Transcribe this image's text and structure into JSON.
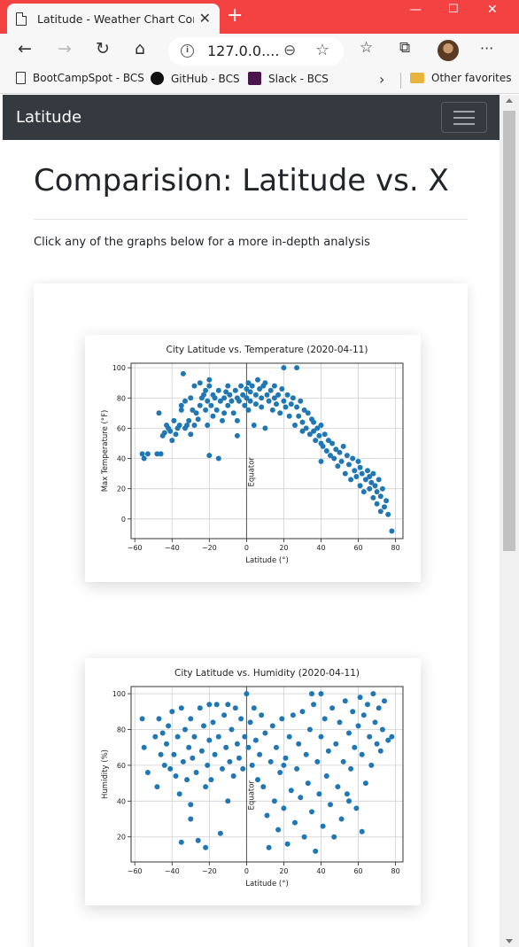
{
  "browser": {
    "tab_title": "Latitude - Weather Chart Compa",
    "address": "127.0.0....",
    "favorites": [
      "BootCampSpot - BCS",
      "GitHub - BCS",
      "Slack - BCS"
    ],
    "other_favorites": "Other favorites"
  },
  "page": {
    "brand": "Latitude",
    "heading": "Comparision: Latitude vs. X",
    "lead": "Click any of the graphs below for a more in-depth analysis"
  },
  "chart_data": [
    {
      "type": "scatter",
      "title": "City Latitude vs. Temperature (2020-04-11)",
      "xlabel": "Latitude (°)",
      "ylabel": "Max Temperature (°F)",
      "annotation": "Equator",
      "xlim": [
        -62,
        84
      ],
      "ylim": [
        -13,
        103
      ],
      "xticks": [
        -60,
        -40,
        -20,
        0,
        20,
        40,
        60,
        80
      ],
      "yticks": [
        0,
        20,
        40,
        60,
        80,
        100
      ],
      "grid": true,
      "color": "#1f77b4",
      "points": [
        [
          -56,
          43
        ],
        [
          -55,
          40
        ],
        [
          -53,
          43
        ],
        [
          -48,
          43
        ],
        [
          -46,
          43
        ],
        [
          -47,
          70
        ],
        [
          -45,
          55
        ],
        [
          -44,
          57
        ],
        [
          -43,
          62
        ],
        [
          -42,
          60
        ],
        [
          -41,
          58
        ],
        [
          -40,
          52
        ],
        [
          -39,
          65
        ],
        [
          -38,
          56
        ],
        [
          -37,
          60
        ],
        [
          -36,
          62
        ],
        [
          -35,
          72
        ],
        [
          -35,
          75
        ],
        [
          -34,
          96
        ],
        [
          -33,
          78
        ],
        [
          -33,
          60
        ],
        [
          -32,
          62
        ],
        [
          -31,
          65
        ],
        [
          -30,
          56
        ],
        [
          -30,
          80
        ],
        [
          -29,
          72
        ],
        [
          -28,
          62
        ],
        [
          -28,
          88
        ],
        [
          -27,
          70
        ],
        [
          -26,
          66
        ],
        [
          -25,
          75
        ],
        [
          -25,
          90
        ],
        [
          -24,
          80
        ],
        [
          -23,
          82
        ],
        [
          -22,
          72
        ],
        [
          -22,
          85
        ],
        [
          -21,
          62
        ],
        [
          -21,
          78
        ],
        [
          -20,
          88
        ],
        [
          -20,
          92
        ],
        [
          -19,
          75
        ],
        [
          -18,
          68
        ],
        [
          -18,
          82
        ],
        [
          -17,
          80
        ],
        [
          -16,
          72
        ],
        [
          -15,
          85
        ],
        [
          -14,
          78
        ],
        [
          -13,
          65
        ],
        [
          -12,
          80
        ],
        [
          -12,
          70
        ],
        [
          -11,
          84
        ],
        [
          -10,
          75
        ],
        [
          -10,
          88
        ],
        [
          -9,
          82
        ],
        [
          -8,
          78
        ],
        [
          -7,
          70
        ],
        [
          -6,
          85
        ],
        [
          -5,
          80
        ],
        [
          -5,
          65
        ],
        [
          -4,
          78
        ],
        [
          -3,
          88
        ],
        [
          -2,
          82
        ],
        [
          -1,
          75
        ],
        [
          0,
          80
        ],
        [
          0,
          86
        ],
        [
          1,
          90
        ],
        [
          1,
          72
        ],
        [
          2,
          78
        ],
        [
          2,
          84
        ],
        [
          3,
          88
        ],
        [
          4,
          62
        ],
        [
          5,
          82
        ],
        [
          5,
          76
        ],
        [
          6,
          92
        ],
        [
          7,
          86
        ],
        [
          8,
          80
        ],
        [
          8,
          74
        ],
        [
          9,
          88
        ],
        [
          10,
          90
        ],
        [
          11,
          82
        ],
        [
          12,
          78
        ],
        [
          13,
          85
        ],
        [
          14,
          72
        ],
        [
          15,
          80
        ],
        [
          15,
          88
        ],
        [
          16,
          76
        ],
        [
          17,
          82
        ],
        [
          18,
          70
        ],
        [
          19,
          86
        ],
        [
          20,
          78
        ],
        [
          20,
          100
        ],
        [
          21,
          74
        ],
        [
          22,
          82
        ],
        [
          23,
          68
        ],
        [
          24,
          76
        ],
        [
          25,
          80
        ],
        [
          26,
          62
        ],
        [
          27,
          74
        ],
        [
          27,
          100
        ],
        [
          28,
          68
        ],
        [
          29,
          78
        ],
        [
          30,
          64
        ],
        [
          31,
          72
        ],
        [
          32,
          60
        ],
        [
          33,
          70
        ],
        [
          34,
          56
        ],
        [
          35,
          66
        ],
        [
          36,
          58
        ],
        [
          36,
          64
        ],
        [
          37,
          52
        ],
        [
          38,
          60
        ],
        [
          39,
          55
        ],
        [
          40,
          50
        ],
        [
          40,
          62
        ],
        [
          41,
          48
        ],
        [
          42,
          56
        ],
        [
          43,
          45
        ],
        [
          44,
          52
        ],
        [
          45,
          42
        ],
        [
          46,
          50
        ],
        [
          47,
          40
        ],
        [
          48,
          46
        ],
        [
          49,
          35
        ],
        [
          50,
          44
        ],
        [
          51,
          38
        ],
        [
          52,
          48
        ],
        [
          53,
          30
        ],
        [
          54,
          42
        ],
        [
          55,
          36
        ],
        [
          56,
          26
        ],
        [
          57,
          40
        ],
        [
          58,
          32
        ],
        [
          59,
          28
        ],
        [
          60,
          38
        ],
        [
          61,
          22
        ],
        [
          61,
          34
        ],
        [
          62,
          30
        ],
        [
          63,
          18
        ],
        [
          64,
          26
        ],
        [
          65,
          32
        ],
        [
          66,
          20
        ],
        [
          66,
          28
        ],
        [
          67,
          24
        ],
        [
          68,
          14
        ],
        [
          68,
          30
        ],
        [
          69,
          22
        ],
        [
          70,
          10
        ],
        [
          70,
          18
        ],
        [
          71,
          26
        ],
        [
          72,
          5
        ],
        [
          72,
          15
        ],
        [
          73,
          20
        ],
        [
          74,
          8
        ],
        [
          75,
          12
        ],
        [
          76,
          3
        ],
        [
          78,
          -8
        ],
        [
          -15,
          40
        ],
        [
          -20,
          42
        ],
        [
          -5,
          55
        ],
        [
          10,
          60
        ],
        [
          30,
          58
        ],
        [
          40,
          38
        ]
      ]
    },
    {
      "type": "scatter",
      "title": "City Latitude vs. Humidity (2020-04-11)",
      "xlabel": "Latitude (°)",
      "ylabel": "Humidity (%)",
      "annotation": "Equator",
      "xlim": [
        -62,
        84
      ],
      "ylim": [
        6,
        104
      ],
      "xticks": [
        -60,
        -40,
        -20,
        0,
        20,
        40,
        60,
        80
      ],
      "yticks": [
        20,
        40,
        60,
        80,
        100
      ],
      "grid": true,
      "color": "#1f77b4",
      "points": [
        [
          -56,
          86
        ],
        [
          -55,
          70
        ],
        [
          -53,
          56
        ],
        [
          -49,
          76
        ],
        [
          -48,
          48
        ],
        [
          -47,
          86
        ],
        [
          -46,
          66
        ],
        [
          -45,
          78
        ],
        [
          -44,
          60
        ],
        [
          -43,
          72
        ],
        [
          -42,
          82
        ],
        [
          -41,
          58
        ],
        [
          -40,
          90
        ],
        [
          -39,
          66
        ],
        [
          -38,
          54
        ],
        [
          -37,
          76
        ],
        [
          -36,
          44
        ],
        [
          -35,
          92
        ],
        [
          -35,
          17
        ],
        [
          -34,
          62
        ],
        [
          -33,
          80
        ],
        [
          -32,
          52
        ],
        [
          -31,
          70
        ],
        [
          -30,
          38
        ],
        [
          -30,
          86
        ],
        [
          -29,
          64
        ],
        [
          -28,
          76
        ],
        [
          -27,
          56
        ],
        [
          -26,
          18
        ],
        [
          -25,
          92
        ],
        [
          -24,
          68
        ],
        [
          -23,
          82
        ],
        [
          -22,
          48
        ],
        [
          -22,
          14
        ],
        [
          -21,
          60
        ],
        [
          -20,
          74
        ],
        [
          -20,
          94
        ],
        [
          -19,
          52
        ],
        [
          -18,
          84
        ],
        [
          -17,
          66
        ],
        [
          -16,
          94
        ],
        [
          -15,
          76
        ],
        [
          -14,
          22
        ],
        [
          -13,
          58
        ],
        [
          -12,
          88
        ],
        [
          -11,
          70
        ],
        [
          -10,
          94
        ],
        [
          -9,
          62
        ],
        [
          -8,
          80
        ],
        [
          -7,
          54
        ],
        [
          -6,
          92
        ],
        [
          -5,
          72
        ],
        [
          -4,
          64
        ],
        [
          -3,
          86
        ],
        [
          -2,
          58
        ],
        [
          -1,
          76
        ],
        [
          0,
          100
        ],
        [
          1,
          70
        ],
        [
          2,
          84
        ],
        [
          3,
          60
        ],
        [
          4,
          92
        ],
        [
          5,
          74
        ],
        [
          6,
          52
        ],
        [
          7,
          66
        ],
        [
          8,
          88
        ],
        [
          9,
          48
        ],
        [
          10,
          78
        ],
        [
          11,
          32
        ],
        [
          12,
          14
        ],
        [
          13,
          62
        ],
        [
          14,
          82
        ],
        [
          15,
          40
        ],
        [
          16,
          70
        ],
        [
          17,
          24
        ],
        [
          18,
          56
        ],
        [
          19,
          86
        ],
        [
          20,
          36
        ],
        [
          21,
          64
        ],
        [
          22,
          16
        ],
        [
          23,
          76
        ],
        [
          24,
          46
        ],
        [
          25,
          88
        ],
        [
          26,
          28
        ],
        [
          27,
          58
        ],
        [
          28,
          72
        ],
        [
          29,
          42
        ],
        [
          30,
          90
        ],
        [
          31,
          20
        ],
        [
          32,
          66
        ],
        [
          33,
          50
        ],
        [
          34,
          80
        ],
        [
          35,
          34
        ],
        [
          36,
          94
        ],
        [
          37,
          12
        ],
        [
          38,
          62
        ],
        [
          39,
          44
        ],
        [
          40,
          76
        ],
        [
          41,
          26
        ],
        [
          42,
          86
        ],
        [
          43,
          54
        ],
        [
          44,
          68
        ],
        [
          45,
          38
        ],
        [
          46,
          92
        ],
        [
          47,
          20
        ],
        [
          48,
          72
        ],
        [
          49,
          48
        ],
        [
          50,
          84
        ],
        [
          51,
          30
        ],
        [
          52,
          62
        ],
        [
          53,
          96
        ],
        [
          54,
          44
        ],
        [
          55,
          78
        ],
        [
          56,
          58
        ],
        [
          57,
          90
        ],
        [
          58,
          70
        ],
        [
          59,
          36
        ],
        [
          60,
          82
        ],
        [
          61,
          98
        ],
        [
          62,
          66
        ],
        [
          62,
          23
        ],
        [
          63,
          88
        ],
        [
          64,
          50
        ],
        [
          65,
          94
        ],
        [
          66,
          76
        ],
        [
          67,
          60
        ],
        [
          68,
          100
        ],
        [
          69,
          84
        ],
        [
          70,
          72
        ],
        [
          71,
          92
        ],
        [
          72,
          68
        ],
        [
          73,
          80
        ],
        [
          74,
          96
        ],
        [
          76,
          74
        ],
        [
          78,
          76
        ],
        [
          -30,
          30
        ],
        [
          -10,
          40
        ],
        [
          20,
          60
        ],
        [
          40,
          100
        ],
        [
          35,
          100
        ],
        [
          55,
          40
        ]
      ]
    }
  ]
}
